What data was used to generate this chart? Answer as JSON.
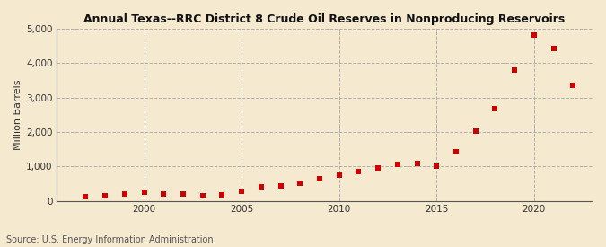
{
  "title": "Annual Texas--RRC District 8 Crude Oil Reserves in Nonproducing Reservoirs",
  "ylabel": "Million Barrels",
  "source": "Source: U.S. Energy Information Administration",
  "background_color": "#f5e9d0",
  "plot_bg_color": "#f5e9d0",
  "marker_color": "#cc0000",
  "years": [
    1997,
    1998,
    1999,
    2000,
    2001,
    2002,
    2003,
    2004,
    2005,
    2006,
    2007,
    2008,
    2009,
    2010,
    2011,
    2012,
    2013,
    2014,
    2015,
    2016,
    2017,
    2018,
    2019,
    2020,
    2021,
    2022
  ],
  "values": [
    130,
    165,
    210,
    255,
    210,
    200,
    160,
    185,
    295,
    420,
    450,
    505,
    650,
    760,
    860,
    950,
    1065,
    1085,
    1020,
    1430,
    2030,
    2670,
    3810,
    4820,
    4430,
    3370
  ],
  "ylim": [
    0,
    5000
  ],
  "yticks": [
    0,
    1000,
    2000,
    3000,
    4000,
    5000
  ],
  "xticks": [
    2000,
    2005,
    2010,
    2015,
    2020
  ],
  "xlim": [
    1995.5,
    2023
  ]
}
